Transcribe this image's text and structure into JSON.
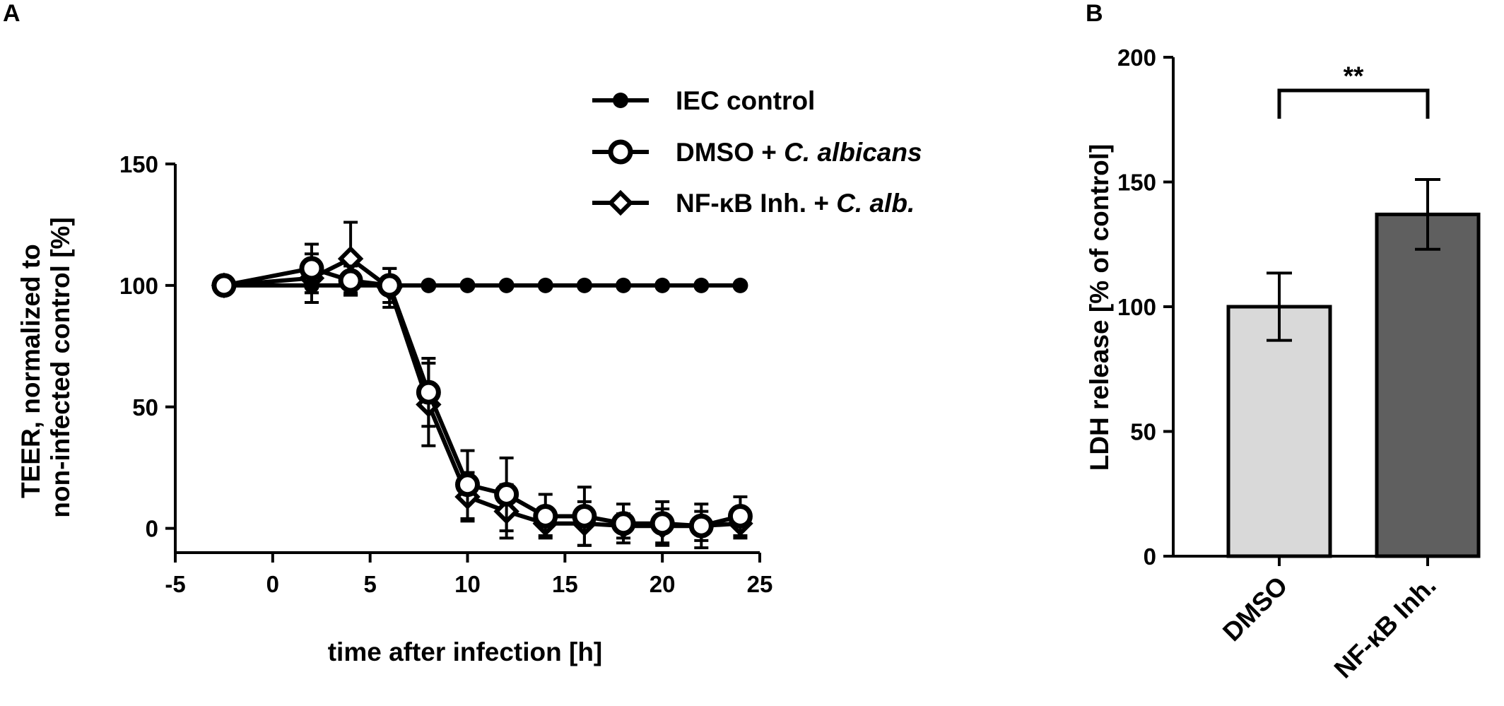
{
  "panels": {
    "a": "A",
    "b": "B"
  },
  "chart_data": [
    {
      "type": "line",
      "panel": "A",
      "title": "",
      "xlabel": "time after infection [h]",
      "ylabel": [
        "TEER, normalized to",
        "non-infected control [%]"
      ],
      "xlim": [
        -5,
        25
      ],
      "ylim": [
        -10,
        150
      ],
      "xticks": [
        -5,
        0,
        5,
        10,
        15,
        20,
        25
      ],
      "yticks": [
        0,
        50,
        100,
        150
      ],
      "grid": false,
      "legend": "top-right",
      "series": [
        {
          "name": "IEC control",
          "legend_parts": [
            {
              "text": "IEC control",
              "italic": false
            }
          ],
          "marker": "filled-circle",
          "x": [
            -2.5,
            2,
            4,
            6,
            8,
            10,
            12,
            14,
            16,
            18,
            20,
            22,
            24
          ],
          "y": [
            100,
            100,
            100,
            100,
            100,
            100,
            100,
            100,
            100,
            100,
            100,
            100,
            100
          ],
          "err": [
            0,
            3,
            3,
            3,
            0,
            0,
            0,
            0,
            0,
            0,
            0,
            0,
            0
          ]
        },
        {
          "name": "DMSO + C. albicans",
          "legend_parts": [
            {
              "text": "DMSO + ",
              "italic": false
            },
            {
              "text": "C. albicans",
              "italic": true
            }
          ],
          "marker": "open-circle",
          "x": [
            -2.5,
            2,
            4,
            6,
            8,
            10,
            12,
            14,
            16,
            18,
            20,
            22,
            24
          ],
          "y": [
            100,
            107,
            102,
            100,
            56,
            18,
            14,
            5,
            5,
            2,
            2,
            1,
            5
          ],
          "err": [
            0,
            10,
            6,
            7,
            14,
            14,
            15,
            9,
            12,
            8,
            9,
            9,
            8
          ]
        },
        {
          "name": "NF-κB Inh. + C. alb.",
          "legend_parts": [
            {
              "text": "NF-κB Inh. + ",
              "italic": false
            },
            {
              "text": "C. alb.",
              "italic": true
            }
          ],
          "marker": "open-diamond",
          "x": [
            -2.5,
            2,
            4,
            6,
            8,
            10,
            12,
            14,
            16,
            18,
            20,
            22,
            24
          ],
          "y": [
            100,
            103,
            111,
            99,
            51,
            13,
            7,
            2,
            2,
            1,
            1,
            1,
            2
          ],
          "err": [
            0,
            10,
            15,
            8,
            17,
            10,
            11,
            5,
            9,
            5,
            7,
            6,
            6
          ]
        }
      ]
    },
    {
      "type": "bar",
      "panel": "B",
      "title": "",
      "xlabel": "",
      "ylabel": "LDH release [% of control]",
      "categories": [
        "DMSO",
        "NF-κB Inh."
      ],
      "values": [
        100,
        137
      ],
      "err": [
        13.5,
        14
      ],
      "colors": [
        "#d9d9d9",
        "#5f5f5f"
      ],
      "ylim": [
        0,
        200
      ],
      "yticks": [
        0,
        50,
        100,
        150,
        200
      ],
      "grid": false,
      "annotation": "**"
    }
  ]
}
